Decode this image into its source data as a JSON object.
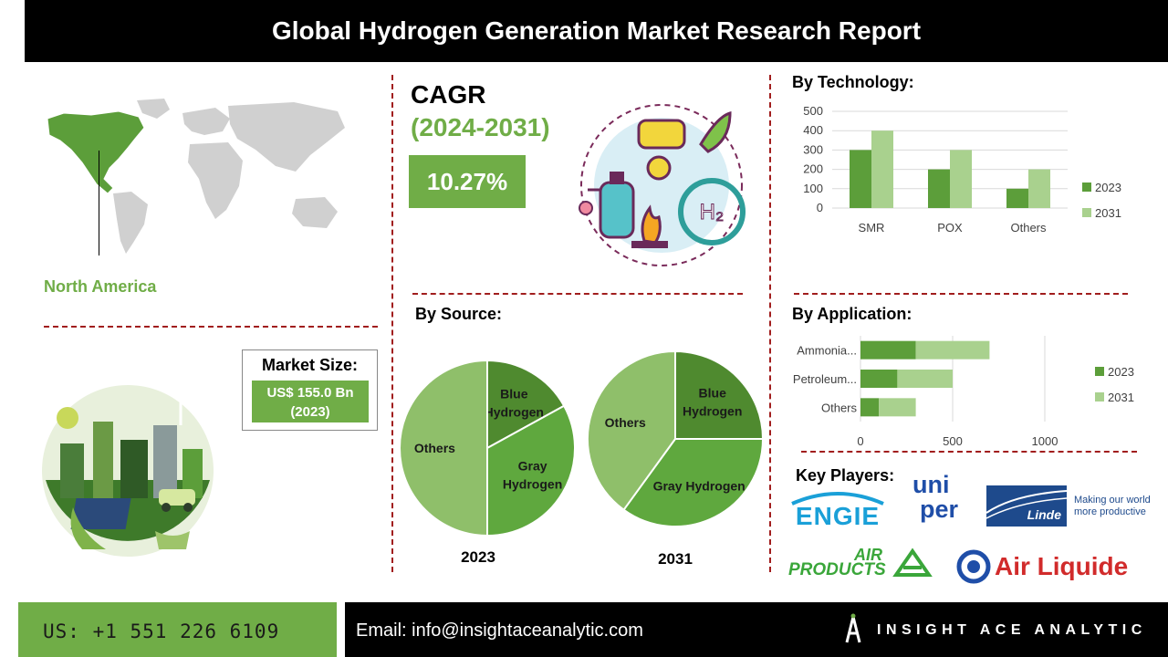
{
  "header": {
    "title": "Global Hydrogen Generation Market Research Report"
  },
  "region": {
    "label": "North America"
  },
  "cagr": {
    "title": "CAGR",
    "period": "(2024-2031)",
    "value": "10.27%"
  },
  "market_size": {
    "label": "Market Size:",
    "value_line1": "US$ 155.0 Bn",
    "value_line2": "(2023)"
  },
  "sections": {
    "technology": "By Technology:",
    "source": "By Source:",
    "application": "By Application:",
    "key_players": "Key Players:"
  },
  "key_players": {
    "engie": "ENGIE",
    "uniper_line1": "uni",
    "uniper_line2": "per",
    "linde_name": "Linde",
    "linde_tagline1": "Making our world",
    "linde_tagline2": "more productive",
    "air_products_line1": "AIR",
    "air_products_line2": "PRODUCTS",
    "air_liquide": "Air Liquide"
  },
  "footer": {
    "phone": "US: +1 551 226 6109",
    "email": "Email: info@insightaceanalytic.com",
    "brand": "INSIGHT ACE ANALYTIC"
  },
  "colors": {
    "series_2023": "#5c9e3a",
    "series_2031": "#a9d18e",
    "accent_green": "#70ad47",
    "divider_red": "#a11d1d",
    "pie_blue": "#4f8a2f",
    "pie_gray": "#5fa83e",
    "pie_others": "#8fbf6a"
  },
  "chart_data": [
    {
      "type": "bar",
      "title": "By Technology:",
      "categories": [
        "SMR",
        "POX",
        "Others"
      ],
      "series": [
        {
          "name": "2023",
          "values": [
            300,
            200,
            100
          ]
        },
        {
          "name": "2031",
          "values": [
            400,
            300,
            200
          ]
        }
      ],
      "yticks": [
        "0",
        "100",
        "200",
        "300",
        "400",
        "500"
      ],
      "ylim": [
        0,
        500
      ],
      "grid": true,
      "legend": "right"
    },
    {
      "type": "bar",
      "orientation": "horizontal",
      "stacked": true,
      "title": "By Application:",
      "categories": [
        "Ammonia...",
        "Petroleum...",
        "Others"
      ],
      "series": [
        {
          "name": "2023",
          "values": [
            300,
            200,
            100
          ]
        },
        {
          "name": "2031",
          "values": [
            400,
            300,
            200
          ]
        }
      ],
      "xticks": [
        "0",
        "500",
        "1000"
      ],
      "xlim": [
        0,
        1000
      ],
      "grid": true,
      "legend": "right"
    },
    {
      "type": "pie",
      "title": "By Source:",
      "label": "2023",
      "slices": [
        {
          "name": "Blue Hydrogen",
          "value": 17
        },
        {
          "name": "Gray Hydrogen",
          "value": 33
        },
        {
          "name": "Others",
          "value": 50
        }
      ]
    },
    {
      "type": "pie",
      "title": "By Source:",
      "label": "2031",
      "slices": [
        {
          "name": "Blue Hydrogen",
          "value": 25
        },
        {
          "name": "Gray Hydrogen",
          "value": 35
        },
        {
          "name": "Others",
          "value": 40
        }
      ]
    }
  ]
}
